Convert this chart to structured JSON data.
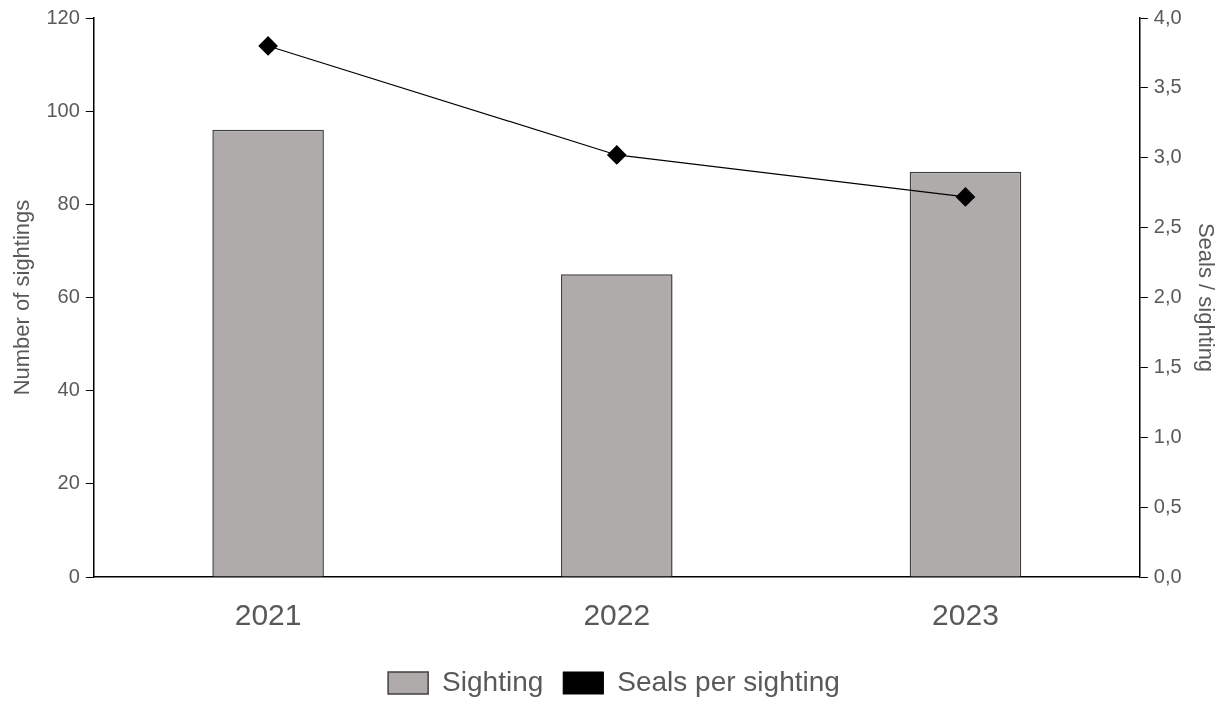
{
  "chart_data": {
    "type": "bar",
    "categories": [
      "2021",
      "2022",
      "2023"
    ],
    "series": [
      {
        "name": "Sighting",
        "color": "#afabab",
        "values": [
          96,
          65,
          87
        ]
      },
      {
        "name": "Seals per sighting",
        "type": "line",
        "axis": "y2",
        "color": "#000000",
        "values": [
          3.8,
          3.02,
          2.72
        ]
      }
    ],
    "ylabel": "Number of sightings",
    "y2label": "Seals / sighting",
    "ylim": [
      0,
      120
    ],
    "yticks": [
      0,
      20,
      40,
      60,
      80,
      100,
      120
    ],
    "y2lim": [
      0,
      4
    ],
    "y2ticks": [
      {
        "value": 0,
        "label": "0,0"
      },
      {
        "value": 0.5,
        "label": "0,5"
      },
      {
        "value": 1,
        "label": "1,0"
      },
      {
        "value": 1.5,
        "label": "1,5"
      },
      {
        "value": 2,
        "label": "2,0"
      },
      {
        "value": 2.5,
        "label": "2,5"
      },
      {
        "value": 3,
        "label": "3,0"
      },
      {
        "value": 3.5,
        "label": "3,5"
      },
      {
        "value": 4,
        "label": "4,0"
      }
    ],
    "grid": false,
    "legend": "bottom",
    "marker": "diamond",
    "line_style": "solid"
  }
}
